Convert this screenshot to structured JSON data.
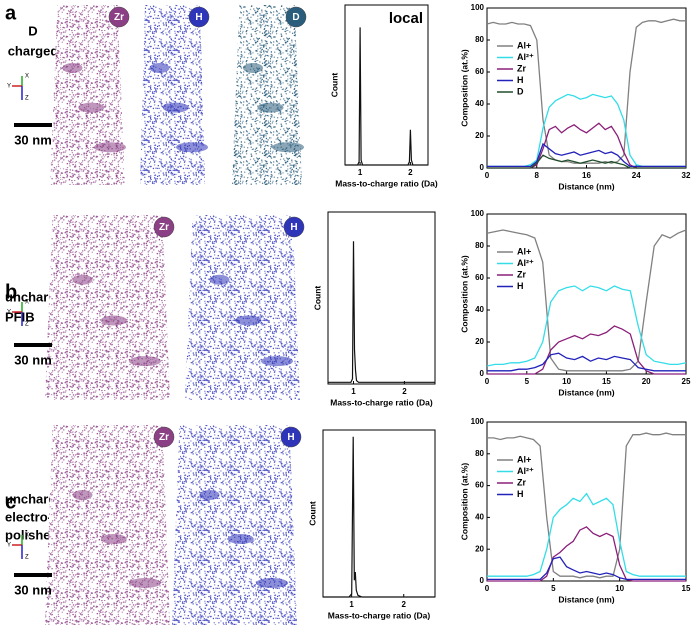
{
  "panels": [
    {
      "label": "a",
      "sample": [
        "D",
        "charged"
      ],
      "elements": [
        "Zr",
        "H",
        "D"
      ],
      "scale_bar": "30 nm",
      "axes": [
        "X",
        "Y",
        "Z"
      ]
    },
    {
      "label": "b",
      "sample": [
        "uncharged",
        "PFIB"
      ],
      "elements": [
        "Zr",
        "H"
      ],
      "scale_bar": "30 nm",
      "axes": [
        "X",
        "Y",
        "Z"
      ]
    },
    {
      "label": "c",
      "sample": [
        "uncharged",
        "electro-",
        "polished"
      ],
      "elements": [
        "Zr",
        "H"
      ],
      "scale_bar": "30 nm",
      "axes": [
        "X",
        "Y",
        "Z"
      ]
    }
  ],
  "chart_data": [
    {
      "type": "line",
      "annotation": "local",
      "xlabel": "Mass-to-charge ratio (Da)",
      "ylabel": "Count",
      "color": "#111111",
      "x": [
        0.7,
        0.95,
        0.98,
        1,
        1.02,
        1.05,
        1.95,
        1.98,
        2,
        2.02,
        2.05,
        2.35
      ],
      "values": [
        0,
        0,
        2,
        86,
        3,
        0,
        0,
        2,
        22,
        3,
        0,
        0
      ],
      "xlim": [
        0.7,
        2.35
      ],
      "ylim": [
        0,
        100
      ],
      "xticks": [
        1,
        2
      ]
    },
    {
      "type": "line",
      "xlabel": "Distance (nm)",
      "ylabel": "Composition (at.%)",
      "xlim": [
        0,
        32
      ],
      "ylim": [
        0,
        100
      ],
      "xticks": [
        0,
        8,
        16,
        24,
        32
      ],
      "yticks": [
        0,
        20,
        40,
        60,
        80,
        100
      ],
      "x": [
        0,
        1,
        2,
        3,
        4,
        5,
        6,
        7,
        8,
        9,
        10,
        11,
        12,
        13,
        14,
        15,
        16,
        17,
        18,
        19,
        20,
        21,
        22,
        23,
        24,
        25,
        26,
        27,
        28,
        29,
        30,
        31,
        32
      ],
      "series": [
        {
          "name": "Al+",
          "color": "#808080",
          "values": [
            90,
            91,
            90,
            90,
            91,
            90,
            90,
            89,
            80,
            30,
            8,
            5,
            4,
            4,
            3,
            3,
            3,
            3,
            3,
            4,
            3,
            4,
            8,
            60,
            88,
            91,
            92,
            92,
            91,
            92,
            93,
            92,
            92
          ]
        },
        {
          "name": "Al²⁺",
          "color": "#33dde8",
          "values": [
            1,
            1,
            1,
            1,
            1,
            1,
            1,
            2,
            5,
            25,
            38,
            42,
            44,
            46,
            45,
            43,
            44,
            46,
            45,
            44,
            45,
            40,
            30,
            8,
            2,
            1,
            1,
            1,
            1,
            1,
            1,
            1,
            1
          ]
        },
        {
          "name": "Zr",
          "color": "#8a1f7a",
          "values": [
            0,
            0,
            0,
            0,
            0,
            0,
            0,
            0,
            2,
            12,
            24,
            26,
            22,
            25,
            27,
            24,
            22,
            25,
            28,
            24,
            26,
            20,
            10,
            2,
            0,
            0,
            0,
            0,
            0,
            0,
            0,
            0,
            0
          ]
        },
        {
          "name": "H",
          "color": "#2222bb",
          "values": [
            1,
            1,
            1,
            1,
            1,
            1,
            1,
            1,
            4,
            15,
            12,
            9,
            8,
            9,
            10,
            8,
            9,
            10,
            11,
            9,
            10,
            8,
            4,
            1,
            1,
            1,
            1,
            1,
            1,
            1,
            1,
            1,
            1
          ]
        },
        {
          "name": "D",
          "color": "#1f4d2a",
          "values": [
            0,
            0,
            0,
            0,
            0,
            0,
            0,
            0,
            3,
            8,
            6,
            5,
            4,
            5,
            4,
            3,
            4,
            5,
            4,
            3,
            4,
            3,
            2,
            0,
            0,
            0,
            0,
            0,
            0,
            0,
            0,
            0,
            0
          ]
        }
      ]
    },
    {
      "type": "line",
      "xlabel": "Mass-to-charge ratio (Da)",
      "ylabel": "Count",
      "color": "#111111",
      "x": [
        0.5,
        0.95,
        0.98,
        1,
        1.02,
        1.04,
        1.06,
        1.1,
        2,
        2.6
      ],
      "values": [
        1,
        1,
        3,
        83,
        20,
        8,
        2,
        1,
        1,
        1
      ],
      "xlim": [
        0.5,
        2.6
      ],
      "ylim": [
        0,
        100
      ],
      "xticks": [
        1,
        2
      ]
    },
    {
      "type": "line",
      "xlabel": "Distance (nm)",
      "ylabel": "Composition (at.%)",
      "xlim": [
        0,
        25
      ],
      "ylim": [
        0,
        100
      ],
      "xticks": [
        0,
        5,
        10,
        15,
        20,
        25
      ],
      "yticks": [
        0,
        20,
        40,
        60,
        80,
        100
      ],
      "x": [
        0,
        1,
        2,
        3,
        4,
        5,
        6,
        7,
        8,
        9,
        10,
        11,
        12,
        13,
        14,
        15,
        16,
        17,
        18,
        19,
        20,
        21,
        22,
        23,
        24,
        25
      ],
      "series": [
        {
          "name": "Al+",
          "color": "#808080",
          "values": [
            88,
            89,
            90,
            89,
            88,
            87,
            85,
            70,
            10,
            3,
            2,
            2,
            2,
            2,
            2,
            2,
            2,
            2,
            3,
            8,
            45,
            80,
            87,
            85,
            88,
            90
          ]
        },
        {
          "name": "Al²⁺",
          "color": "#33dde8",
          "values": [
            5,
            6,
            6,
            7,
            7,
            8,
            10,
            20,
            45,
            52,
            54,
            55,
            52,
            55,
            54,
            52,
            55,
            53,
            52,
            30,
            12,
            8,
            7,
            6,
            6,
            7
          ]
        },
        {
          "name": "Zr",
          "color": "#8a1f7a",
          "values": [
            0,
            0,
            0,
            0,
            0,
            0,
            0,
            3,
            15,
            20,
            22,
            24,
            22,
            25,
            24,
            26,
            30,
            28,
            25,
            8,
            2,
            0,
            0,
            0,
            0,
            0
          ]
        },
        {
          "name": "H",
          "color": "#2222bb",
          "values": [
            2,
            2,
            2,
            2,
            3,
            3,
            4,
            6,
            12,
            13,
            10,
            9,
            11,
            8,
            10,
            9,
            11,
            10,
            9,
            4,
            3,
            2,
            2,
            2,
            2,
            2
          ]
        }
      ]
    },
    {
      "type": "line",
      "xlabel": "Mass-to-charge ratio (Da)",
      "ylabel": "Count",
      "color": "#111111",
      "x": [
        0.45,
        0.95,
        1,
        1.03,
        1.05,
        1.07,
        1.09,
        1.12,
        1.2,
        2,
        2.6
      ],
      "values": [
        0,
        0,
        2,
        96,
        10,
        15,
        4,
        1,
        0,
        0,
        0
      ],
      "xlim": [
        0.45,
        2.6
      ],
      "ylim": [
        0,
        100
      ],
      "xticks": [
        1,
        2
      ]
    },
    {
      "type": "line",
      "xlabel": "Distance (nm)",
      "ylabel": "Composition (at.%)",
      "xlim": [
        0,
        15
      ],
      "ylim": [
        0,
        100
      ],
      "xticks": [
        0,
        5,
        10,
        15
      ],
      "yticks": [
        0,
        20,
        40,
        60,
        80,
        100
      ],
      "x": [
        0,
        0.5,
        1,
        1.5,
        2,
        2.5,
        3,
        3.5,
        4,
        4.5,
        5,
        5.5,
        6,
        6.5,
        7,
        7.5,
        8,
        8.5,
        9,
        9.5,
        10,
        10.5,
        11,
        11.5,
        12,
        12.5,
        13,
        13.5,
        14,
        14.5,
        15
      ],
      "series": [
        {
          "name": "Al+",
          "color": "#808080",
          "values": [
            90,
            90,
            89,
            90,
            90,
            91,
            90,
            89,
            85,
            40,
            6,
            3,
            3,
            3,
            2,
            3,
            3,
            2,
            3,
            3,
            20,
            85,
            92,
            92,
            93,
            92,
            92,
            93,
            92,
            92,
            92
          ]
        },
        {
          "name": "Al²⁺",
          "color": "#33dde8",
          "values": [
            3,
            3,
            3,
            3,
            3,
            3,
            3,
            4,
            6,
            20,
            40,
            45,
            48,
            52,
            50,
            55,
            48,
            50,
            52,
            48,
            25,
            6,
            4,
            3,
            3,
            3,
            3,
            3,
            3,
            3,
            3
          ]
        },
        {
          "name": "Zr",
          "color": "#8a1f7a",
          "values": [
            0,
            0,
            0,
            0,
            0,
            0,
            0,
            0,
            0,
            3,
            15,
            18,
            22,
            25,
            32,
            34,
            30,
            28,
            30,
            28,
            10,
            1,
            0,
            0,
            0,
            0,
            0,
            0,
            0,
            0,
            0
          ]
        },
        {
          "name": "H",
          "color": "#2222bb",
          "values": [
            1,
            1,
            1,
            1,
            1,
            1,
            1,
            1,
            1,
            5,
            14,
            15,
            9,
            7,
            5,
            6,
            5,
            4,
            5,
            4,
            2,
            1,
            1,
            1,
            1,
            1,
            1,
            1,
            1,
            1,
            1
          ]
        }
      ]
    }
  ]
}
